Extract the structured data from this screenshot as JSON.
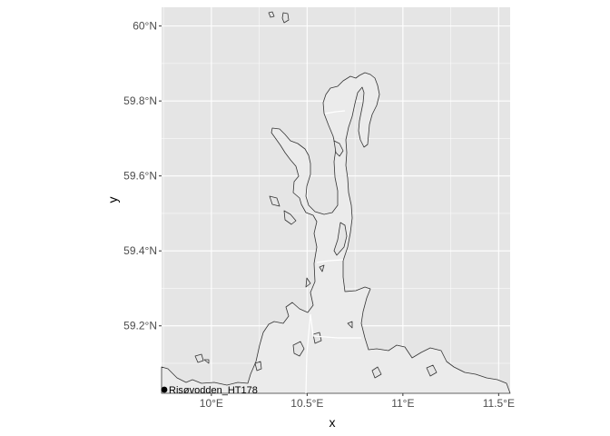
{
  "chart_data": {
    "type": "map",
    "title": "",
    "xlabel": "x",
    "ylabel": "y",
    "xlim": [
      9.74,
      11.56
    ],
    "ylim": [
      59.02,
      60.05
    ],
    "x_ticks": [
      {
        "value": 10.0,
        "label": "10°E"
      },
      {
        "value": 10.5,
        "label": "10.5°E"
      },
      {
        "value": 11.0,
        "label": "11°E"
      },
      {
        "value": 11.5,
        "label": "11.5°E"
      }
    ],
    "y_ticks": [
      {
        "value": 59.2,
        "label": "59.2°N"
      },
      {
        "value": 59.4,
        "label": "59.4°N"
      },
      {
        "value": 59.6,
        "label": "59.6°N"
      },
      {
        "value": 59.8,
        "label": "59.8°N"
      },
      {
        "value": 60.0,
        "label": "60°N"
      }
    ],
    "grid": true,
    "colors": {
      "panel": "#e5e5e5",
      "grid": "#ffffff",
      "water": "#ebebeb",
      "coastline": "#333333",
      "boundary": "#ffffff",
      "marker": "#000000"
    },
    "points": [
      {
        "label": "Risøvodden_HT178",
        "lon": 9.75,
        "lat": 59.02
      }
    ]
  }
}
